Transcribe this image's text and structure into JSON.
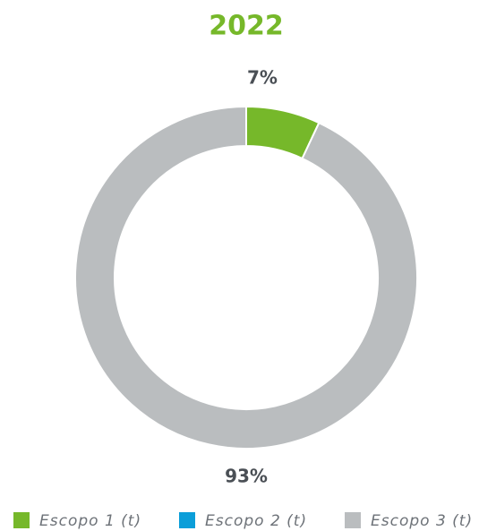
{
  "chart_data": {
    "type": "donut",
    "title": "2022",
    "categories": [
      "Escopo 1 (t)",
      "Escopo 2 (t)",
      "Escopo 3 (t)"
    ],
    "values": [
      7,
      0,
      93
    ],
    "value_labels": [
      "7%",
      null,
      "93%"
    ],
    "colors": [
      "#76b82a",
      "#0b9ed9",
      "#babdbf"
    ],
    "legend": "bottom"
  }
}
